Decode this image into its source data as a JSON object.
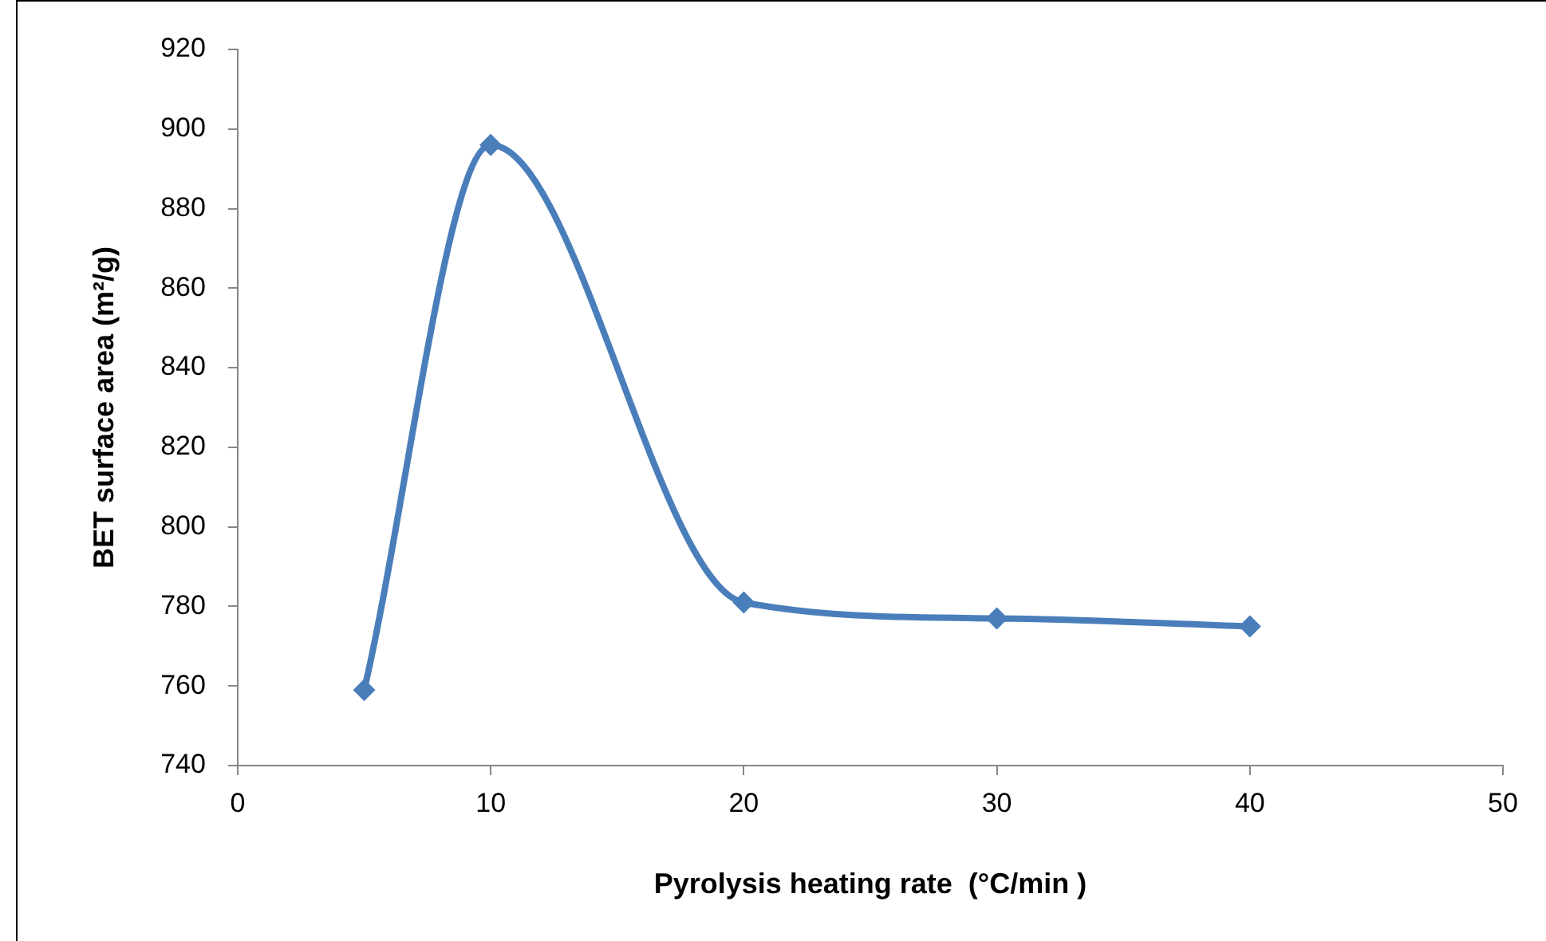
{
  "chart_data": {
    "type": "line",
    "xlabel": "Pyrolysis heating rate  (°C/min )",
    "ylabel": "BET surface area (m²/g)",
    "x": [
      5,
      10,
      20,
      30,
      40
    ],
    "series": [
      {
        "color": "#4a7ebb",
        "values": [
          759,
          896,
          781,
          777,
          775
        ]
      }
    ],
    "xlim": [
      0,
      50
    ],
    "xticks": [
      0,
      10,
      20,
      30,
      40,
      50
    ],
    "ylim": [
      740,
      920
    ],
    "yticks": [
      740,
      760,
      780,
      800,
      820,
      840,
      860,
      880,
      900,
      920
    ],
    "grid": false,
    "legend": false,
    "marker": "diamond",
    "line_style": "solid"
  }
}
